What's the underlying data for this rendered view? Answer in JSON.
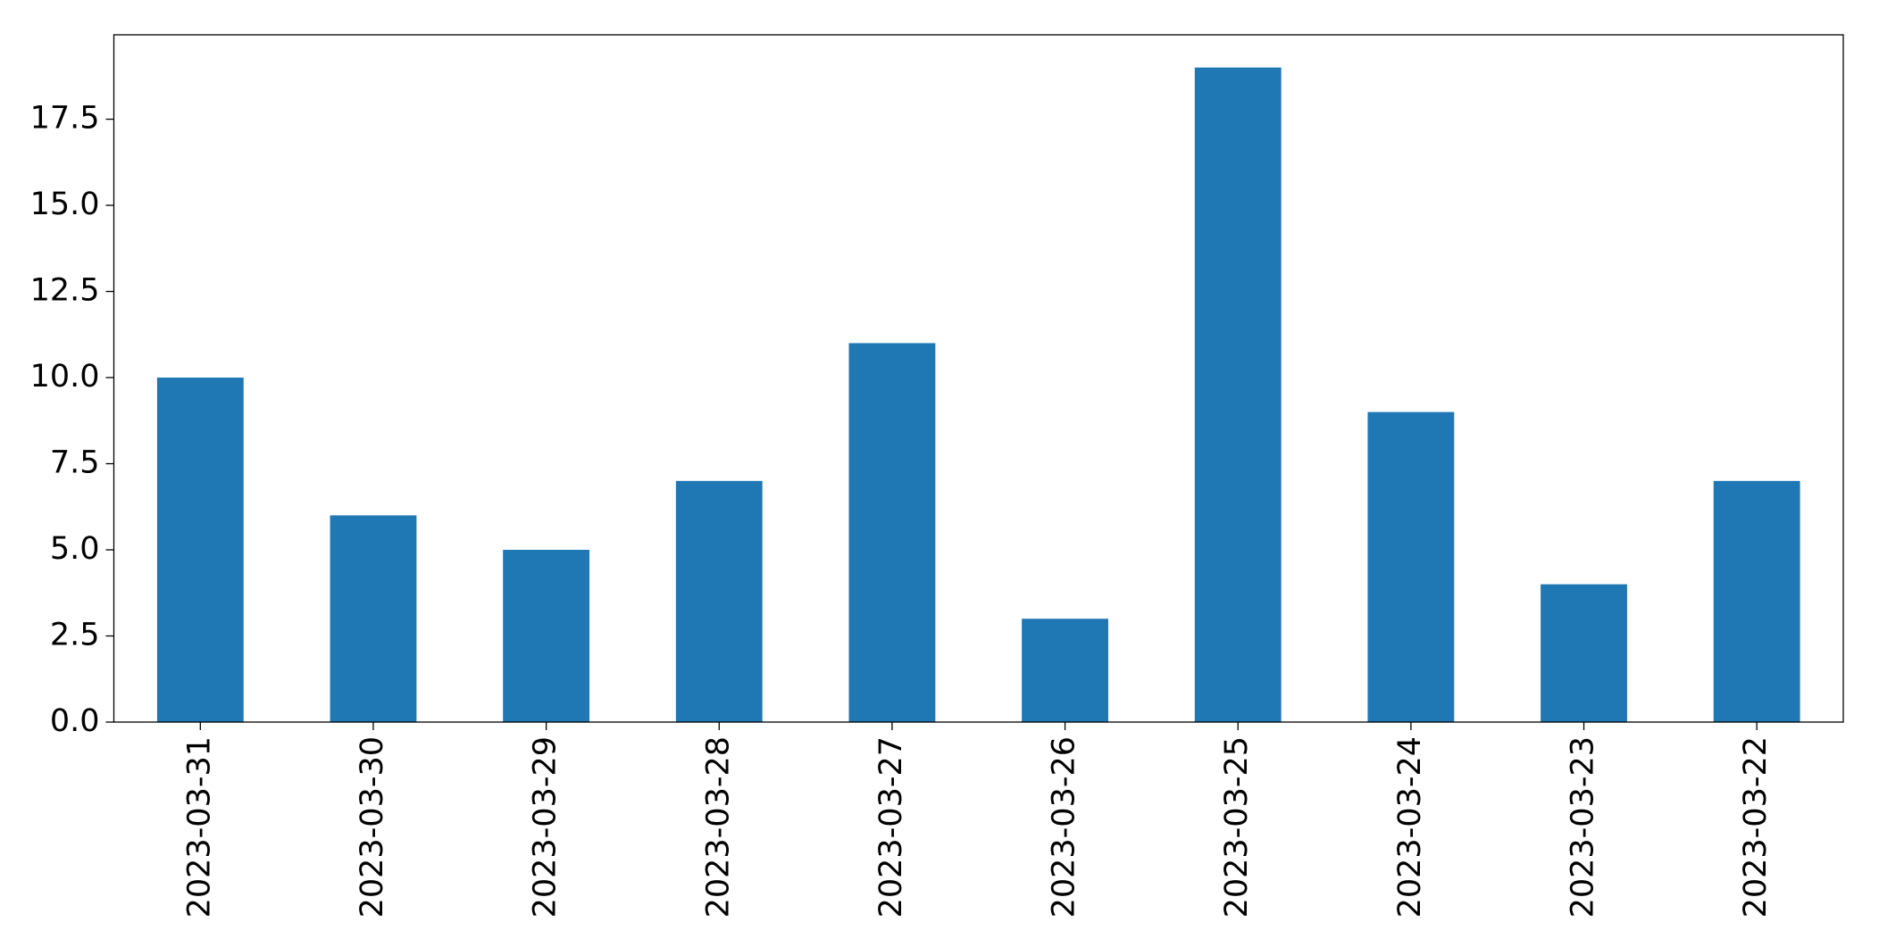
{
  "chart_data": {
    "type": "bar",
    "categories": [
      "2023-03-31",
      "2023-03-30",
      "2023-03-29",
      "2023-03-28",
      "2023-03-27",
      "2023-03-26",
      "2023-03-25",
      "2023-03-24",
      "2023-03-23",
      "2023-03-22"
    ],
    "values": [
      10,
      6,
      5,
      7,
      11,
      3,
      19,
      9,
      4,
      7
    ],
    "color": "#1f77b4",
    "ylim": [
      0,
      19.95
    ],
    "yticks": [
      {
        "value": 0,
        "label": "0.0"
      },
      2.5,
      {
        "value": 5,
        "label": "5.0"
      },
      7.5,
      {
        "value": 10,
        "label": "10.0"
      },
      12.5,
      {
        "value": 15,
        "label": "15.0"
      },
      17.5
    ],
    "grid": false
  }
}
